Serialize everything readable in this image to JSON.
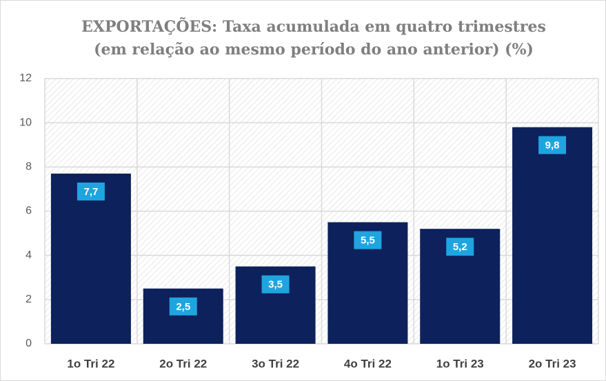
{
  "chart_data": {
    "type": "bar",
    "title": [
      "EXPORTAÇÕES: Taxa acumulada em quatro trimestres",
      "(em relação ao mesmo período do ano anterior) (%)"
    ],
    "categories": [
      "1o Tri 22",
      "2o Tri 22",
      "3o Tri 22",
      "4o Tri 22",
      "1o Tri 23",
      "2o Tri 23"
    ],
    "values": [
      7.7,
      2.5,
      3.5,
      5.5,
      5.2,
      9.8
    ],
    "value_labels": [
      "7,7",
      "2,5",
      "3,5",
      "5,5",
      "5,2",
      "9,8"
    ],
    "color": "#0d215c",
    "label_color": "#1ea5e0",
    "ylim": [
      0,
      12
    ],
    "yticks": [
      0,
      2,
      4,
      6,
      8,
      10,
      12
    ],
    "grid": true
  }
}
